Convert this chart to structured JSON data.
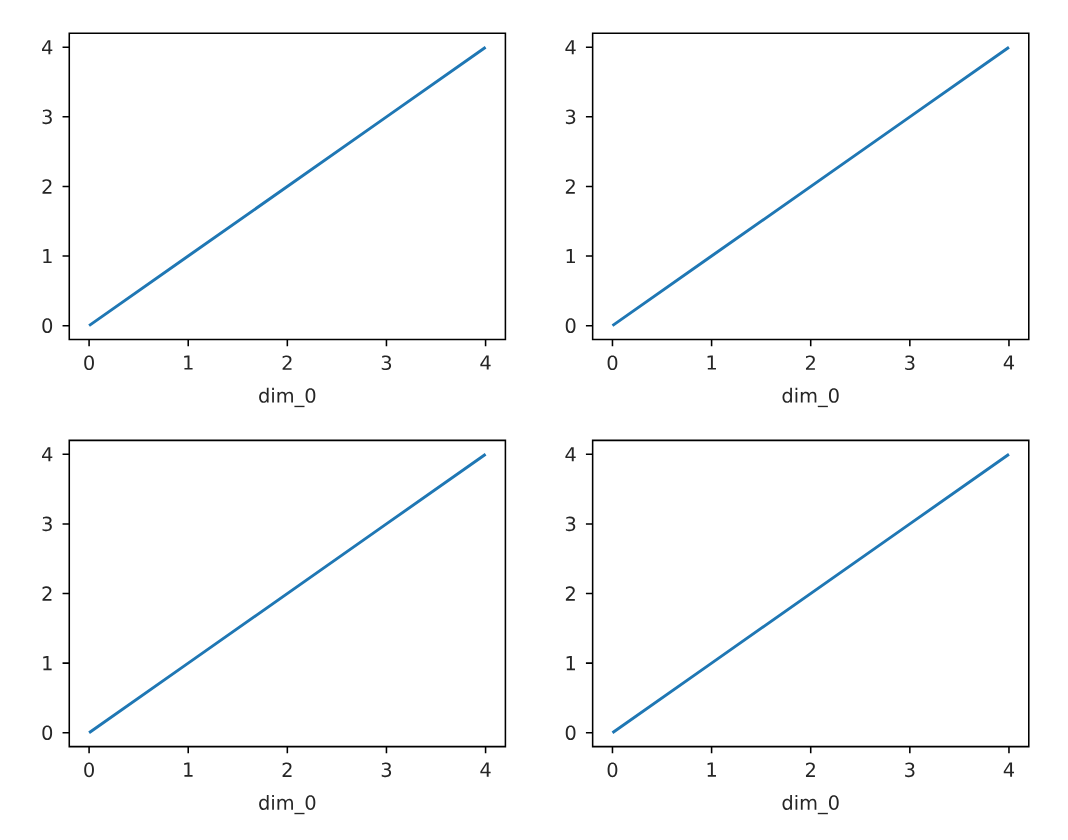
{
  "chart_data": [
    {
      "type": "line",
      "xlabel": "dim_0",
      "x": [
        0,
        1,
        2,
        3,
        4
      ],
      "values": [
        0,
        1,
        2,
        3,
        4
      ],
      "color": "#1f77b4",
      "xlim": [
        -0.2,
        4.2
      ],
      "ylim": [
        -0.2,
        4.2
      ],
      "xticks": [
        0,
        1,
        2,
        3,
        4
      ],
      "yticks": [
        0,
        1,
        2,
        3,
        4
      ]
    },
    {
      "type": "line",
      "xlabel": "dim_0",
      "x": [
        0,
        1,
        2,
        3,
        4
      ],
      "values": [
        0,
        1,
        2,
        3,
        4
      ],
      "color": "#1f77b4",
      "xlim": [
        -0.2,
        4.2
      ],
      "ylim": [
        -0.2,
        4.2
      ],
      "xticks": [
        0,
        1,
        2,
        3,
        4
      ],
      "yticks": [
        0,
        1,
        2,
        3,
        4
      ]
    },
    {
      "type": "line",
      "xlabel": "dim_0",
      "x": [
        0,
        1,
        2,
        3,
        4
      ],
      "values": [
        0,
        1,
        2,
        3,
        4
      ],
      "color": "#1f77b4",
      "xlim": [
        -0.2,
        4.2
      ],
      "ylim": [
        -0.2,
        4.2
      ],
      "xticks": [
        0,
        1,
        2,
        3,
        4
      ],
      "yticks": [
        0,
        1,
        2,
        3,
        4
      ]
    },
    {
      "type": "line",
      "xlabel": "dim_0",
      "x": [
        0,
        1,
        2,
        3,
        4
      ],
      "values": [
        0,
        1,
        2,
        3,
        4
      ],
      "color": "#1f77b4",
      "xlim": [
        -0.2,
        4.2
      ],
      "ylim": [
        -0.2,
        4.2
      ],
      "xticks": [
        0,
        1,
        2,
        3,
        4
      ],
      "yticks": [
        0,
        1,
        2,
        3,
        4
      ]
    }
  ]
}
